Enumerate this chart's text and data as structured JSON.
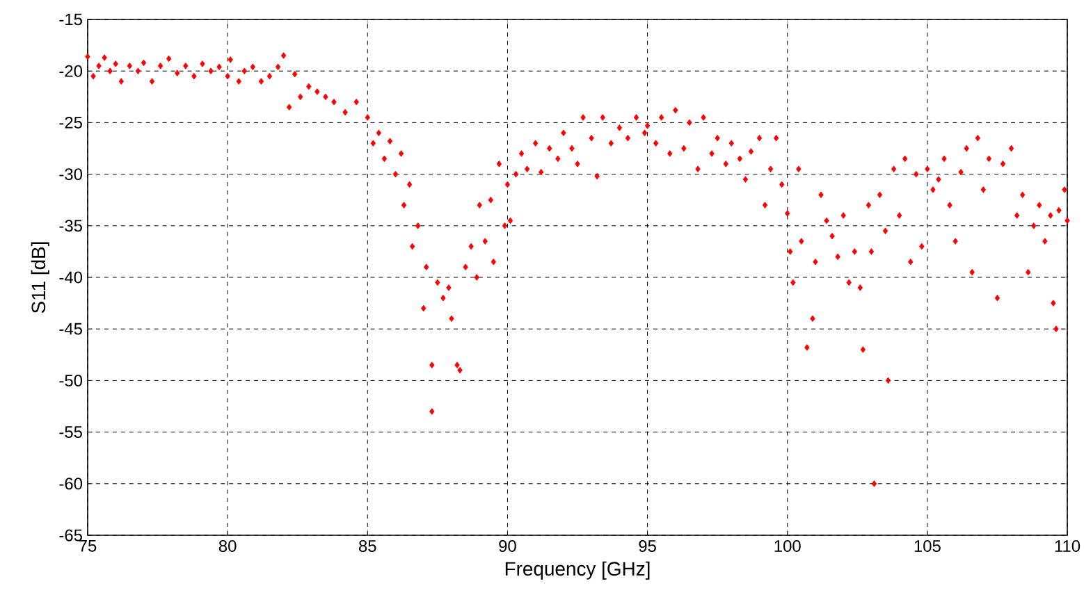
{
  "chart_data": {
    "type": "scatter",
    "xlabel": "Frequency [GHz]",
    "ylabel": "S11 [dB]",
    "xlim": [
      75,
      110
    ],
    "xticks": [
      75,
      80,
      85,
      90,
      95,
      100,
      105,
      110
    ],
    "ylim": [
      -65,
      -15
    ],
    "yticks": [
      -65,
      -60,
      -55,
      -50,
      -45,
      -40,
      -35,
      -30,
      -25,
      -20,
      -15
    ],
    "grid": true,
    "marker": "diamond",
    "series": [
      {
        "color": "#ff0000",
        "x": [
          75.0,
          75.2,
          75.4,
          75.6,
          75.8,
          76.0,
          76.2,
          76.5,
          76.8,
          77.0,
          77.3,
          77.6,
          77.9,
          78.2,
          78.5,
          78.8,
          79.1,
          79.4,
          79.7,
          80.0,
          80.1,
          80.4,
          80.6,
          80.9,
          81.2,
          81.5,
          81.8,
          82.0,
          82.2,
          82.4,
          82.6,
          82.9,
          83.2,
          83.5,
          83.8,
          84.2,
          84.6,
          85.0,
          85.2,
          85.4,
          85.6,
          85.8,
          86.0,
          86.2,
          86.3,
          86.5,
          86.6,
          86.8,
          87.0,
          87.1,
          87.3,
          87.3,
          87.5,
          87.7,
          87.9,
          88.0,
          88.2,
          88.3,
          88.5,
          88.7,
          88.9,
          89.0,
          89.2,
          89.4,
          89.5,
          89.7,
          89.9,
          90.0,
          90.1,
          90.3,
          90.5,
          90.7,
          91.0,
          91.2,
          91.5,
          91.8,
          92.0,
          92.3,
          92.5,
          92.7,
          93.0,
          93.2,
          93.4,
          93.7,
          94.0,
          94.3,
          94.6,
          94.9,
          95.0,
          95.3,
          95.5,
          95.8,
          96.0,
          96.3,
          96.5,
          96.8,
          97.0,
          97.3,
          97.5,
          97.8,
          98.0,
          98.3,
          98.5,
          98.7,
          99.0,
          99.2,
          99.4,
          99.6,
          99.8,
          100.0,
          100.1,
          100.2,
          100.4,
          100.5,
          100.7,
          100.9,
          101.0,
          101.2,
          101.4,
          101.6,
          101.8,
          102.0,
          102.2,
          102.4,
          102.6,
          102.7,
          102.9,
          103.0,
          103.1,
          103.3,
          103.5,
          103.6,
          103.8,
          104.0,
          104.2,
          104.4,
          104.6,
          104.8,
          105.0,
          105.2,
          105.4,
          105.6,
          105.8,
          106.0,
          106.2,
          106.4,
          106.6,
          106.8,
          107.0,
          107.2,
          107.5,
          107.7,
          108.0,
          108.2,
          108.4,
          108.6,
          108.8,
          109.0,
          109.2,
          109.4,
          109.5,
          109.6,
          109.7,
          109.9,
          110.0
        ],
        "values": [
          -18.6,
          -20.5,
          -19.5,
          -18.7,
          -20,
          -19.3,
          -21,
          -19.5,
          -20,
          -19.2,
          -21,
          -19.5,
          -18.8,
          -20.2,
          -19.5,
          -20.5,
          -19.3,
          -20,
          -19.6,
          -20.5,
          -18.9,
          -21,
          -20,
          -19.6,
          -21,
          -20.5,
          -19.6,
          -18.5,
          -23.5,
          -20.3,
          -22.5,
          -21.5,
          -22,
          -22.5,
          -23,
          -24,
          -23,
          -24.5,
          -27,
          -26,
          -28.5,
          -26.8,
          -30,
          -28,
          -33,
          -31,
          -37,
          -35,
          -43,
          -39,
          -48.5,
          -53,
          -40.5,
          -42,
          -41,
          -44,
          -48.5,
          -49,
          -39,
          -37,
          -40,
          -33,
          -36.5,
          -32.5,
          -38.5,
          -29,
          -35,
          -31,
          -34.5,
          -30,
          -28,
          -29.5,
          -27,
          -29.8,
          -27.5,
          -28.5,
          -26,
          -27.5,
          -29,
          -24.5,
          -26.5,
          -30.2,
          -24.5,
          -27,
          -25.5,
          -26.5,
          -24.5,
          -26,
          -25.3,
          -27,
          -24.5,
          -28,
          -23.8,
          -27.5,
          -25,
          -29.5,
          -24.5,
          -28,
          -26.5,
          -29,
          -27,
          -28.5,
          -30.5,
          -27.8,
          -26.5,
          -33,
          -29.5,
          -26.5,
          -31,
          -33.8,
          -37.5,
          -40.5,
          -29.5,
          -36.5,
          -46.8,
          -44,
          -38.5,
          -32,
          -34.5,
          -36,
          -38,
          -34,
          -40.5,
          -37.5,
          -41,
          -47,
          -33,
          -37.5,
          -60,
          -32,
          -35.5,
          -50,
          -29.5,
          -34,
          -28.5,
          -38.5,
          -30,
          -37,
          -29.5,
          -31.5,
          -30.5,
          -28.5,
          -33,
          -36.5,
          -29.8,
          -27.5,
          -39.5,
          -26.5,
          -31.5,
          -28.5,
          -42,
          -29,
          -27.5,
          -34,
          -32,
          -39.5,
          -35,
          -33,
          -36.5,
          -34,
          -42.5,
          -45,
          -33.5,
          -31.5,
          -34.5
        ]
      }
    ]
  }
}
